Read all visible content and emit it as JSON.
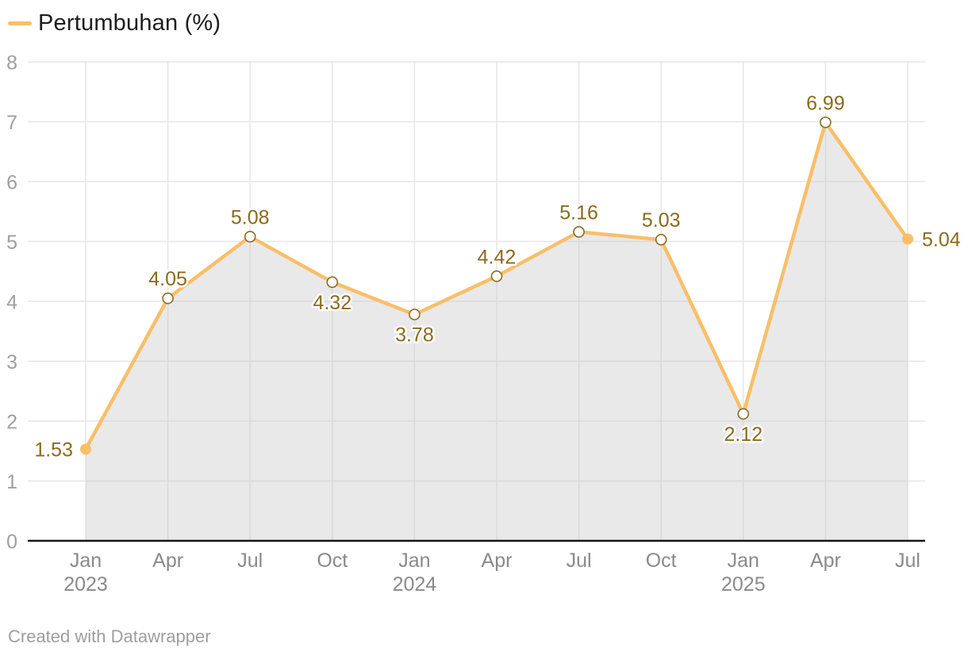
{
  "legend": {
    "label": "Pertumbuhan (%)"
  },
  "footer": {
    "text": "Created with Datawrapper"
  },
  "colors": {
    "line": "#F8BF69",
    "marker_fill": "#F8BF69",
    "marker_open_fill": "#FFFFFF",
    "marker_open_stroke": "#8A6B20",
    "data_label": "#8A6A1C",
    "data_label_halo": "#FFFFFF",
    "area_fill": "#C7C7C766",
    "grid": "#E6E6E6",
    "axis_line": "#161616",
    "y_tick_text": "#9F9F9F",
    "x_tick_text": "#8A8A8A",
    "legend_text": "#1D1D1D",
    "footer_text": "#9E9E9E"
  },
  "chart_data": {
    "type": "area",
    "title": "",
    "xlabel": "",
    "ylabel": "",
    "legend_position": "top-left",
    "grid": true,
    "ylim": [
      0,
      8
    ],
    "yticks": [
      0,
      1,
      2,
      3,
      4,
      5,
      6,
      7,
      8
    ],
    "categories": [
      "Jan 2023",
      "Apr 2023",
      "Jul 2023",
      "Oct 2023",
      "Jan 2024",
      "Apr 2024",
      "Jul 2024",
      "Oct 2024",
      "Jan 2025",
      "Apr 2025",
      "Jul 2025"
    ],
    "x_tick_months": [
      "Jan",
      "Apr",
      "Jul",
      "Oct",
      "Jan",
      "Apr",
      "Jul",
      "Oct",
      "Jan",
      "Apr",
      "Jul"
    ],
    "x_tick_years": {
      "0": "2023",
      "4": "2024",
      "8": "2025"
    },
    "series": [
      {
        "name": "Pertumbuhan (%)",
        "values": [
          1.53,
          4.05,
          5.08,
          4.32,
          3.78,
          4.42,
          5.16,
          5.03,
          2.12,
          6.99,
          5.04
        ]
      }
    ],
    "data_labels": [
      "1.53",
      "4.05",
      "5.08",
      "4.32",
      "3.78",
      "4.42",
      "5.16",
      "5.03",
      "2.12",
      "6.99",
      "5.04"
    ],
    "label_placement": [
      "left",
      "above",
      "above",
      "below",
      "below",
      "above",
      "above",
      "above",
      "below",
      "above",
      "right"
    ],
    "marker_style": [
      "filled",
      "open",
      "open",
      "open",
      "open",
      "open",
      "open",
      "open",
      "open",
      "open",
      "filled"
    ]
  }
}
